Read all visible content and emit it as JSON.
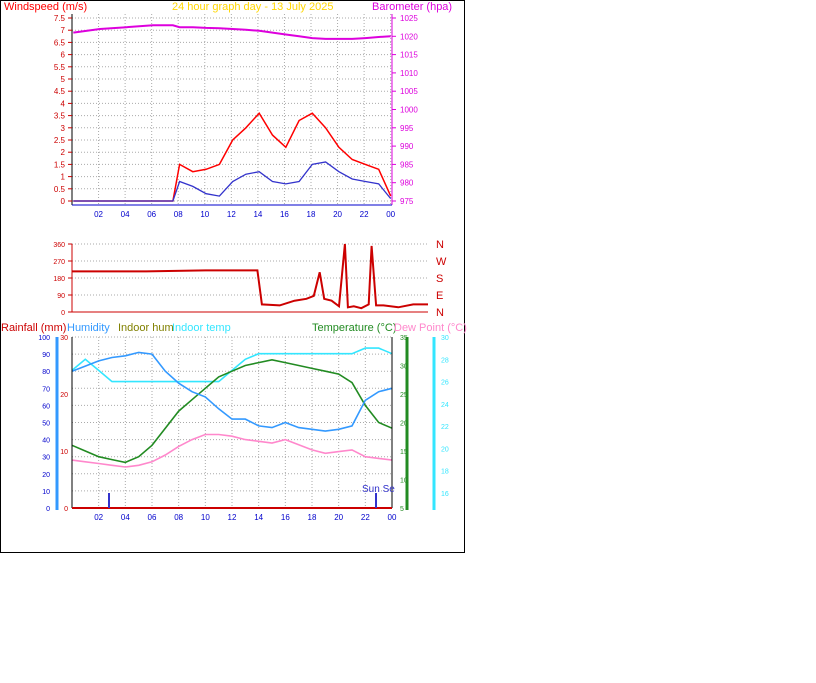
{
  "colors": {
    "wind": "#ff0000",
    "gust_avg": "#3333cc",
    "baro": "#dd00dd",
    "title": "#ffd700",
    "dir": "#cc0000",
    "humidity": "#3399ff",
    "indoor_hum": "#808000",
    "indoor_temp": "#33e6ff",
    "temperature": "#228b22",
    "dew_point": "#ff88cc",
    "rain": "#ff0000",
    "grid": "#aaaaaa",
    "axis_blue": "#0000cc",
    "sun_marker": "#3333cc"
  },
  "wind_chart": {
    "title": "24 hour graph day - 13 July 2025",
    "left_label": "Windspeed (m/s)",
    "right_label": "Barometer (hpa)",
    "left_ticks": [
      "0",
      "0.5",
      "1",
      "1.5",
      "2",
      "2.5",
      "3",
      "3.5",
      "4",
      "4.5",
      "5",
      "5.5",
      "6",
      "6.5",
      "7",
      "7.5"
    ],
    "right_ticks": [
      "975",
      "980",
      "985",
      "990",
      "995",
      "1000",
      "1005",
      "1010",
      "1015",
      "1020",
      "1025"
    ],
    "x_ticks": [
      "02",
      "04",
      "06",
      "08",
      "10",
      "12",
      "14",
      "16",
      "18",
      "20",
      "22",
      "00"
    ]
  },
  "dir_chart": {
    "left_ticks": [
      "0",
      "90",
      "180",
      "270",
      "360"
    ],
    "right_labels": [
      "N",
      "E",
      "S",
      "W",
      "N"
    ]
  },
  "temp_chart": {
    "rain_label": "Rainfall (mm)",
    "humidity_label": "Humidity",
    "indoor_hum_label": "Indoor hum",
    "indoor_temp_label": "Indoor temp",
    "temperature_label": "Temperature (°C)",
    "dew_label": "Dew Point (°C)",
    "hum_ticks": [
      "0",
      "10",
      "20",
      "30",
      "40",
      "50",
      "60",
      "70",
      "80",
      "90",
      "100"
    ],
    "rain_ticks": [
      "0",
      "10",
      "20",
      "30"
    ],
    "temp_ticks": [
      "5",
      "10",
      "15",
      "20",
      "25",
      "30",
      "35"
    ],
    "dew_ticks": [
      "16",
      "18",
      "20",
      "22",
      "24",
      "26",
      "28",
      "30"
    ],
    "x_ticks": [
      "02",
      "04",
      "06",
      "08",
      "10",
      "12",
      "14",
      "16",
      "18",
      "20",
      "22",
      "00"
    ],
    "annotation": "Sun Se"
  },
  "chart_data": [
    {
      "type": "line",
      "title": "24 hour graph day - 13 July 2025",
      "ylabel": "Windspeed (m/s)",
      "y2label": "Barometer (hpa)",
      "ylim": [
        0,
        7.5
      ],
      "y2lim": [
        975,
        1025
      ],
      "x_hours": [
        0,
        2,
        4,
        6,
        7.5,
        8,
        9,
        10,
        11,
        12,
        13,
        14,
        15,
        16,
        17,
        18,
        19,
        20,
        21,
        22,
        23,
        23.9
      ],
      "series": [
        {
          "name": "Windspeed (m/s)",
          "values": [
            0,
            0,
            0,
            0,
            0,
            1.5,
            1.2,
            1.3,
            1.5,
            2.5,
            3.0,
            3.6,
            2.7,
            2.2,
            3.3,
            3.6,
            3.0,
            2.2,
            1.7,
            1.5,
            1.3,
            0.2
          ]
        },
        {
          "name": "Wind average",
          "values": [
            0,
            0,
            0,
            0,
            0,
            0.8,
            0.6,
            0.3,
            0.2,
            0.8,
            1.1,
            1.2,
            0.8,
            0.7,
            0.8,
            1.5,
            1.6,
            1.2,
            0.9,
            0.8,
            0.7,
            0.1
          ]
        },
        {
          "name": "Barometer (hpa)",
          "values": [
            1021,
            1022,
            1022.5,
            1023,
            1023,
            1022.5,
            1022.5,
            1022.3,
            1022.2,
            1022,
            1021.8,
            1021.5,
            1021,
            1020.5,
            1020,
            1019.5,
            1019.3,
            1019.3,
            1019.3,
            1019.5,
            1019.8,
            1020
          ]
        }
      ]
    },
    {
      "type": "line",
      "ylim": [
        0,
        360
      ],
      "x_hours": [
        0,
        5,
        9,
        12.5,
        12.8,
        14,
        15,
        15.8,
        16.3,
        16.7,
        17,
        17.5,
        18,
        18.4,
        18.6,
        19,
        19.5,
        20,
        20.2,
        20.5,
        21,
        22,
        23,
        24
      ],
      "series": [
        {
          "name": "Wind direction",
          "values": [
            215,
            215,
            220,
            220,
            40,
            35,
            60,
            70,
            85,
            210,
            70,
            60,
            30,
            360,
            25,
            30,
            20,
            40,
            350,
            35,
            35,
            25,
            40,
            40
          ]
        }
      ]
    },
    {
      "type": "line",
      "ylim": [
        0,
        100
      ],
      "y2lim": [
        5,
        35
      ],
      "x_hours": [
        0,
        1,
        2,
        3,
        4,
        5,
        6,
        7,
        8,
        9,
        10,
        11,
        12,
        13,
        14,
        15,
        16,
        17,
        18,
        19,
        20,
        21,
        22,
        23,
        24
      ],
      "series": [
        {
          "name": "Humidity",
          "values": [
            80,
            83,
            86,
            88,
            89,
            91,
            90,
            80,
            73,
            68,
            65,
            58,
            52,
            52,
            48,
            47,
            50,
            47,
            46,
            45,
            46,
            48,
            63,
            68,
            70
          ]
        },
        {
          "name": "Indoor hum",
          "values": [
            28,
            27,
            26,
            25,
            24,
            25,
            27,
            31,
            36,
            40,
            43,
            43,
            42,
            40,
            39,
            38,
            40,
            37,
            34,
            32,
            33,
            34,
            30,
            29,
            28
          ]
        },
        {
          "name": "Indoor temp",
          "values": [
            27,
            28,
            27,
            26,
            26,
            26,
            26,
            26,
            26,
            26,
            26,
            26,
            27,
            28,
            28.5,
            28.5,
            28.5,
            28.5,
            28.5,
            28.5,
            28.5,
            28.5,
            29,
            29,
            28.5
          ]
        },
        {
          "name": "Temperature (°C)",
          "values": [
            16,
            15,
            14,
            13.5,
            13,
            14,
            16,
            19,
            22,
            24,
            26,
            28,
            29,
            30,
            30.5,
            31,
            30.5,
            30,
            29.5,
            29,
            28.5,
            27,
            23,
            20,
            19
          ]
        },
        {
          "name": "Rainfall (mm)",
          "values": [
            0,
            0,
            0,
            0,
            0,
            0,
            0,
            0,
            0,
            0,
            0,
            0,
            0,
            0,
            0,
            0,
            0,
            0,
            0,
            0,
            0,
            0,
            0,
            0,
            0
          ]
        }
      ]
    }
  ]
}
